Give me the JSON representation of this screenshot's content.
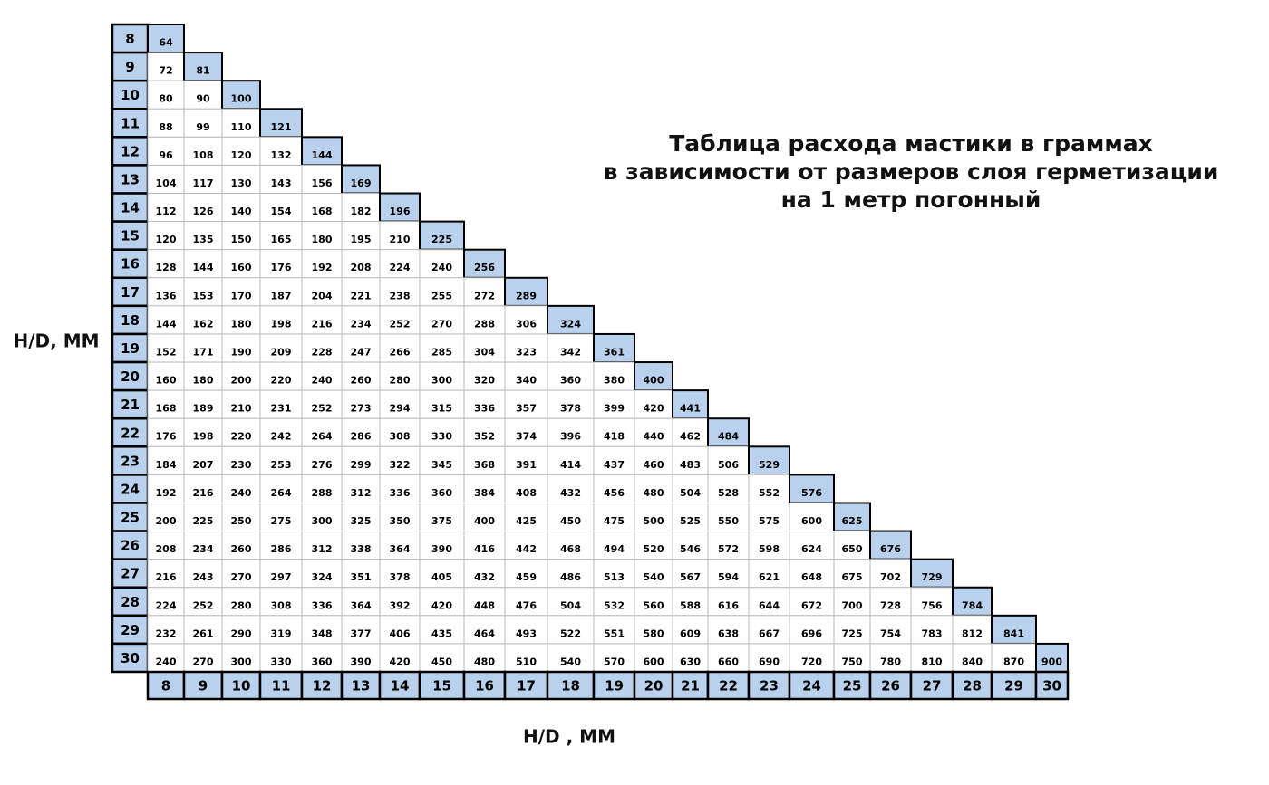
{
  "title": [
    "Таблица расхода мастики в граммах",
    "в зависимости от размеров слоя  герметизации",
    "на 1 метр погонный"
  ],
  "y_axis_label": "H/D, MM",
  "x_axis_label": "H/D , MM",
  "row_headers": [
    8,
    9,
    10,
    11,
    12,
    13,
    14,
    15,
    16,
    17,
    18,
    19,
    20,
    21,
    22,
    23,
    24,
    25,
    26,
    27,
    28,
    29,
    30
  ],
  "column_headers": [
    8,
    9,
    10,
    11,
    12,
    13,
    14,
    15,
    16,
    17,
    18,
    19,
    20,
    21,
    22,
    23,
    24,
    25,
    26,
    27,
    28,
    29,
    30
  ],
  "rows": [
    [
      64
    ],
    [
      72,
      81
    ],
    [
      80,
      90,
      100
    ],
    [
      88,
      99,
      110,
      121
    ],
    [
      96,
      108,
      120,
      132,
      144
    ],
    [
      104,
      117,
      130,
      143,
      156,
      169
    ],
    [
      112,
      126,
      140,
      154,
      168,
      182,
      196
    ],
    [
      120,
      135,
      150,
      165,
      180,
      195,
      210,
      225
    ],
    [
      128,
      144,
      160,
      176,
      192,
      208,
      224,
      240,
      256
    ],
    [
      136,
      153,
      170,
      187,
      204,
      221,
      238,
      255,
      272,
      289
    ],
    [
      144,
      162,
      180,
      198,
      216,
      234,
      252,
      270,
      288,
      306,
      324
    ],
    [
      152,
      171,
      190,
      209,
      228,
      247,
      266,
      285,
      304,
      323,
      342,
      361
    ],
    [
      160,
      180,
      200,
      220,
      240,
      260,
      280,
      300,
      320,
      340,
      360,
      380,
      400
    ],
    [
      168,
      189,
      210,
      231,
      252,
      273,
      294,
      315,
      336,
      357,
      378,
      399,
      420,
      441
    ],
    [
      176,
      198,
      220,
      242,
      264,
      286,
      308,
      330,
      352,
      374,
      396,
      418,
      440,
      462,
      484
    ],
    [
      184,
      207,
      230,
      253,
      276,
      299,
      322,
      345,
      368,
      391,
      414,
      437,
      460,
      483,
      506,
      529
    ],
    [
      192,
      216,
      240,
      264,
      288,
      312,
      336,
      360,
      384,
      408,
      432,
      456,
      480,
      504,
      528,
      552,
      576
    ],
    [
      200,
      225,
      250,
      275,
      300,
      325,
      350,
      375,
      400,
      425,
      450,
      475,
      500,
      525,
      550,
      575,
      600,
      625
    ],
    [
      208,
      234,
      260,
      286,
      312,
      338,
      364,
      390,
      416,
      442,
      468,
      494,
      520,
      546,
      572,
      598,
      624,
      650,
      676
    ],
    [
      216,
      243,
      270,
      297,
      324,
      351,
      378,
      405,
      432,
      459,
      486,
      513,
      540,
      567,
      594,
      621,
      648,
      675,
      702,
      729
    ],
    [
      224,
      252,
      280,
      308,
      336,
      364,
      392,
      420,
      448,
      476,
      504,
      532,
      560,
      588,
      616,
      644,
      672,
      700,
      728,
      756,
      784
    ],
    [
      232,
      261,
      290,
      319,
      348,
      377,
      406,
      435,
      464,
      493,
      522,
      551,
      580,
      609,
      638,
      667,
      696,
      725,
      754,
      783,
      812,
      841
    ],
    [
      240,
      270,
      300,
      330,
      360,
      390,
      420,
      450,
      480,
      510,
      540,
      570,
      600,
      630,
      660,
      690,
      720,
      750,
      780,
      810,
      840,
      870,
      900
    ]
  ]
}
